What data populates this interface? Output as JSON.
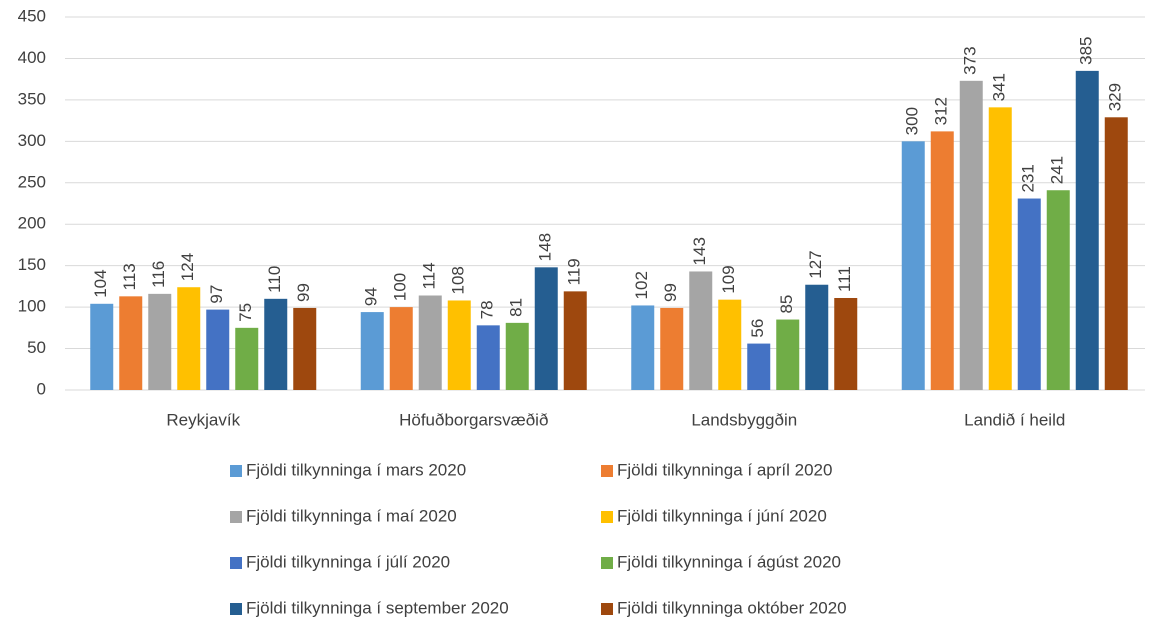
{
  "chart_data": {
    "type": "bar",
    "categories": [
      "Reykjavík",
      "Höfuðborgarsvæðið",
      "Landsbyggðin",
      "Landið í heild"
    ],
    "series": [
      {
        "name": "Fjöldi tilkynninga í mars 2020",
        "color": "#5b9bd5",
        "values": [
          104,
          94,
          102,
          300
        ]
      },
      {
        "name": "Fjöldi tilkynninga í apríl 2020",
        "color": "#ed7d31",
        "values": [
          113,
          100,
          99,
          312
        ]
      },
      {
        "name": "Fjöldi tilkynninga í maí 2020",
        "color": "#a5a5a5",
        "values": [
          116,
          114,
          143,
          373
        ]
      },
      {
        "name": "Fjöldi tilkynninga í júní 2020",
        "color": "#ffc000",
        "values": [
          124,
          108,
          109,
          341
        ]
      },
      {
        "name": "Fjöldi tilkynninga í júlí 2020",
        "color": "#4472c4",
        "values": [
          97,
          78,
          56,
          231
        ]
      },
      {
        "name": "Fjöldi tilkynninga í ágúst 2020",
        "color": "#70ad47",
        "values": [
          75,
          81,
          85,
          241
        ]
      },
      {
        "name": "Fjöldi tilkynninga í september 2020",
        "color": "#255e91",
        "values": [
          110,
          148,
          127,
          385
        ]
      },
      {
        "name": "Fjöldi tilkynninga október 2020",
        "color": "#9e480e",
        "values": [
          99,
          119,
          111,
          329
        ]
      }
    ],
    "ylim": [
      0,
      450
    ],
    "yticks": [
      0,
      50,
      100,
      150,
      200,
      250,
      300,
      350,
      400,
      450
    ],
    "grid": true,
    "legend": "bottom"
  }
}
